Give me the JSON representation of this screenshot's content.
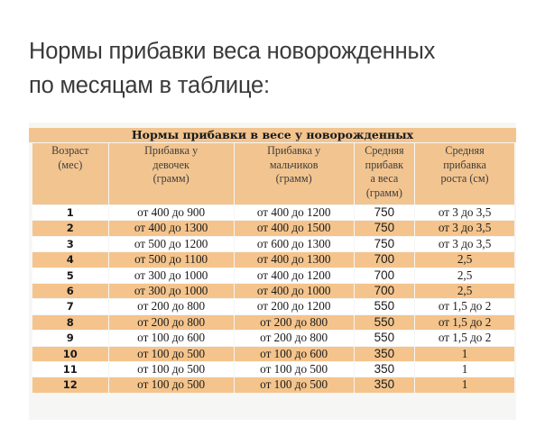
{
  "page_title": {
    "line1": "Нормы прибавки веса новорожденных",
    "line2": "по месяцам в таблице:"
  },
  "table": {
    "caption": "Нормы прибавки в весе у новорожденных",
    "headers": [
      {
        "lines": [
          "Возраст",
          "(мес)"
        ]
      },
      {
        "lines": [
          "Прибавка у",
          "девочек",
          "(грамм)"
        ]
      },
      {
        "lines": [
          "Прибавка у",
          "мальчиков",
          "(грамм)"
        ]
      },
      {
        "lines": [
          "Средняя",
          "прибавк",
          "а веса",
          "(грамм)"
        ]
      },
      {
        "lines": [
          "Средняя",
          "прибавка",
          "роста (см)"
        ]
      }
    ],
    "rows": [
      [
        "1",
        "от 400 до 900",
        "от 400 до 1200",
        "750",
        "от 3 до 3,5"
      ],
      [
        "2",
        "от 400 до 1300",
        "от 400 до 1500",
        "750",
        "от 3 до 3,5"
      ],
      [
        "3",
        "от 500 до 1200",
        "от 600 до 1300",
        "750",
        "от 3 до 3,5"
      ],
      [
        "4",
        "от 500 до 1100",
        "от 400 до 1300",
        "700",
        "2,5"
      ],
      [
        "5",
        "от 300 до 1000",
        "от 400 до 1200",
        "700",
        "2,5"
      ],
      [
        "6",
        "от 300 до 1000",
        "от 400 до 1000",
        "700",
        "2,5"
      ],
      [
        "7",
        "от 200 до 800",
        "от 200 до 1200",
        "550",
        "от 1,5 до 2"
      ],
      [
        "8",
        "от 200 до 800",
        "от 200 до 800",
        "550",
        "от 1,5 до 2"
      ],
      [
        "9",
        "от 100 до 600",
        "от 200 до 800",
        "550",
        "от 1,5 до 2"
      ],
      [
        "10",
        "от 100 до 500",
        "от 100 до 600",
        "350",
        "1"
      ],
      [
        "11",
        "от 100 до 500",
        "от 100 до 500",
        "350",
        "1"
      ],
      [
        "12",
        "от 100 до 500",
        "от 100 до 500",
        "350",
        "1"
      ]
    ]
  },
  "colors": {
    "header_bg": "#f2c48f",
    "stripe_bg": "#f4c48c",
    "row_bg": "#ffffff",
    "title_text": "#3a3a3a"
  }
}
